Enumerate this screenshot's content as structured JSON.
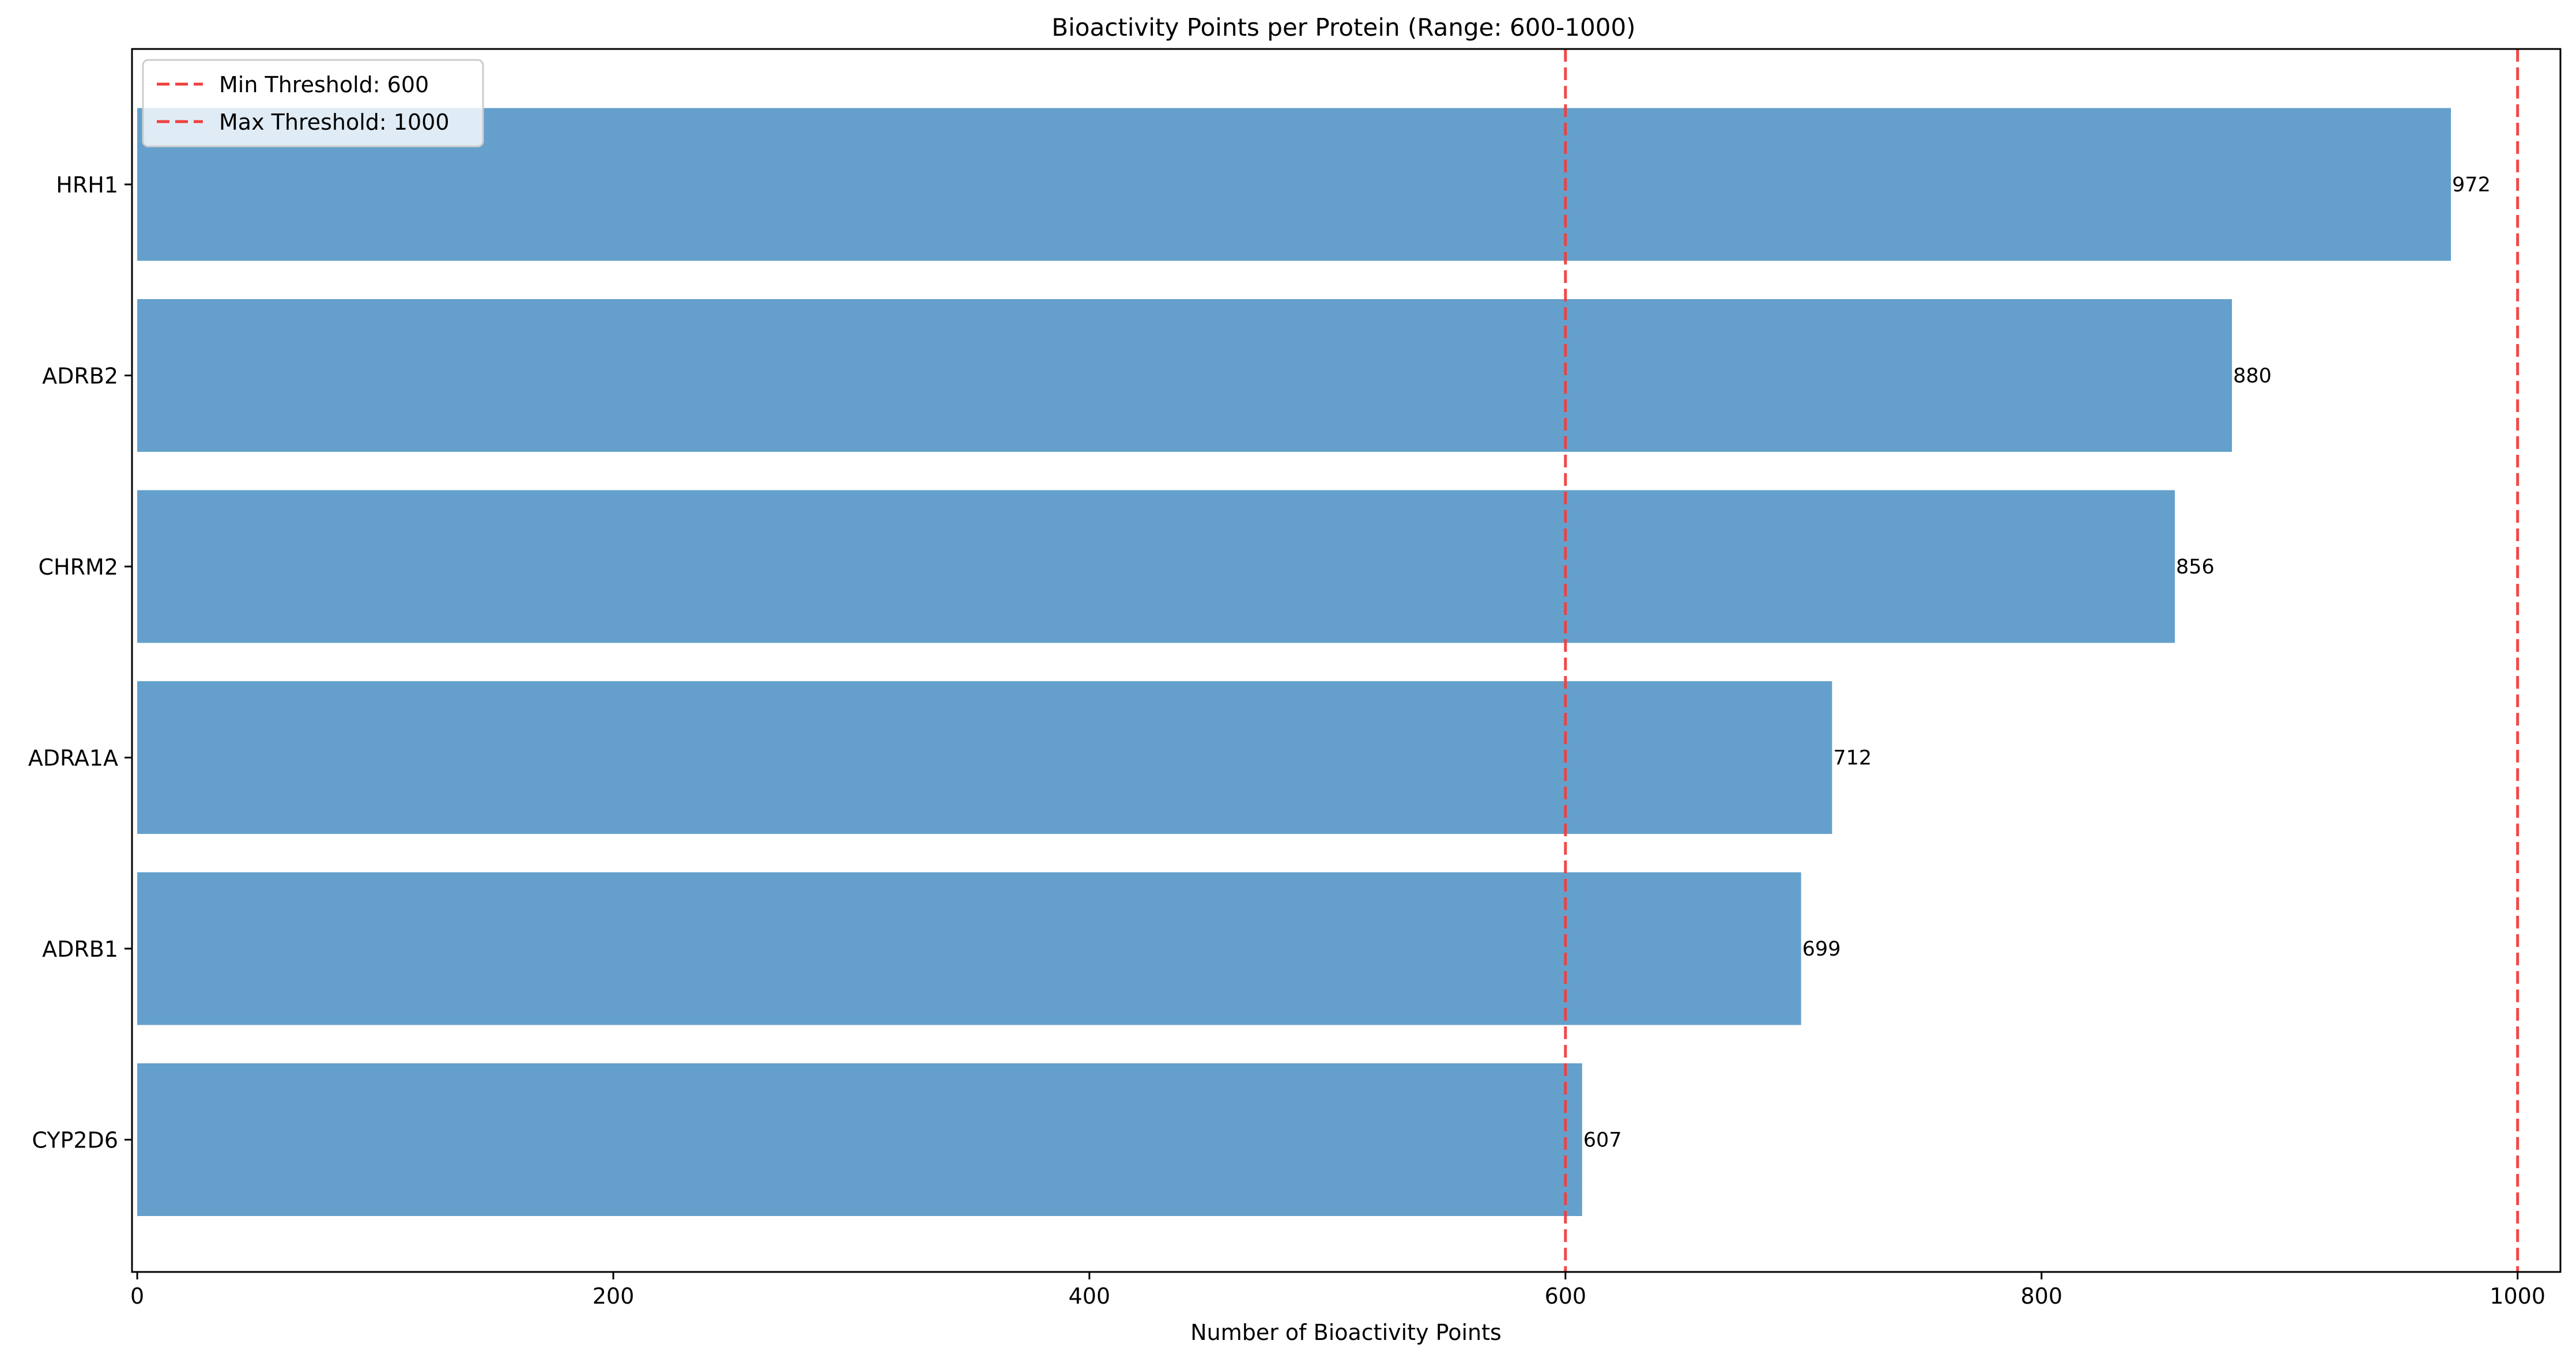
{
  "chart_data": {
    "type": "bar",
    "orientation": "horizontal",
    "title": "Bioactivity Points per Protein (Range: 600-1000)",
    "xlabel": "Number of Bioactivity Points",
    "ylabel": "",
    "categories": [
      "HRH1",
      "ADRB2",
      "CHRM2",
      "ADRA1A",
      "ADRB1",
      "CYP2D6"
    ],
    "values": [
      972,
      880,
      856,
      712,
      699,
      607
    ],
    "data_labels": [
      "972",
      "880",
      "856",
      "712",
      "699",
      "607"
    ],
    "xlim": [
      0,
      1000
    ],
    "xticks": [
      0,
      200,
      400,
      600,
      800,
      1000
    ],
    "xtick_labels": [
      "0",
      "200",
      "400",
      "600",
      "800",
      "1000"
    ],
    "bar_color": "#64a0cb",
    "grid": false,
    "reference_lines": [
      {
        "value": 600,
        "label": "Min Threshold: 600",
        "color": "#f04040",
        "style": "dashed"
      },
      {
        "value": 1000,
        "label": "Max Threshold: 1000",
        "color": "#f04040",
        "style": "dashed"
      }
    ],
    "legend": {
      "placement": "top-left",
      "entries": [
        "Min Threshold: 600",
        "Max Threshold: 1000"
      ]
    }
  }
}
